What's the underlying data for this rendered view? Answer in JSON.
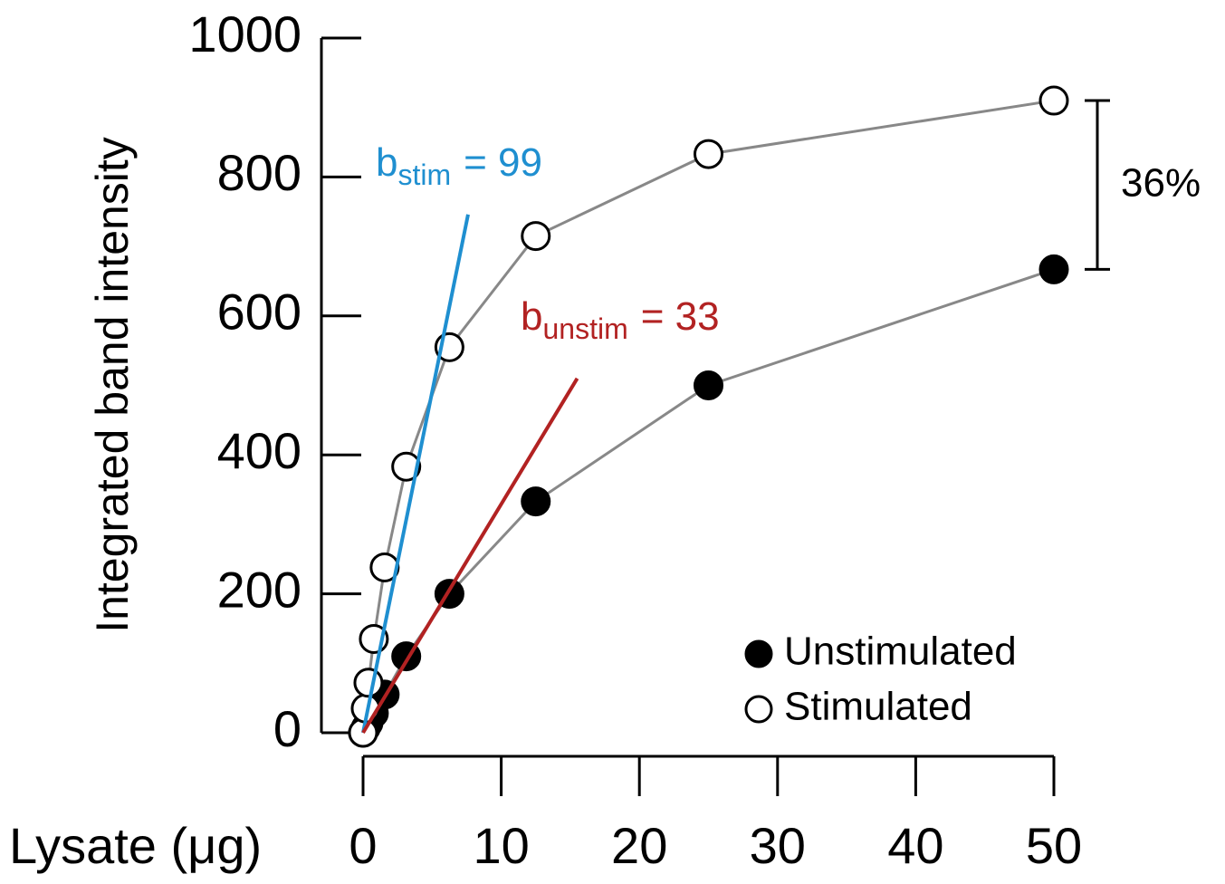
{
  "chart_data": {
    "type": "line",
    "y_label": "Integrated band intensity",
    "x_label": "Lysate (μg)",
    "x": [
      0,
      0.195,
      0.39,
      0.78,
      1.5625,
      3.125,
      6.25,
      12.5,
      25,
      50
    ],
    "series": [
      {
        "name": "Unstimulated",
        "color": "#000000",
        "fill": "#000000",
        "values": [
          0,
          7,
          14,
          28,
          55,
          110,
          200,
          333,
          500,
          667
        ]
      },
      {
        "name": "Stimulated",
        "color": "#000000",
        "fill": "#ffffff",
        "values": [
          0,
          35,
          72,
          135,
          238,
          383,
          555,
          715,
          833,
          910
        ]
      }
    ],
    "line_color": "#888888",
    "fit_lines": [
      {
        "color": "#1f8fd0",
        "x": [
          0,
          7.6
        ],
        "y": [
          0,
          746
        ],
        "label": {
          "base": "b",
          "subscript": "stim",
          "rest": "= 99"
        }
      },
      {
        "color": "#b22222",
        "x": [
          0,
          15.5
        ],
        "y": [
          0,
          510
        ],
        "label": {
          "base": "b",
          "subscript": "unstim",
          "rest": "= 33"
        }
      }
    ],
    "bracket_label": "36%",
    "xlim": [
      0,
      50
    ],
    "ylim": [
      0,
      1000
    ],
    "xticks": [
      0,
      10,
      20,
      30,
      40,
      50
    ],
    "yticks": [
      0,
      200,
      400,
      600,
      800,
      1000
    ]
  }
}
